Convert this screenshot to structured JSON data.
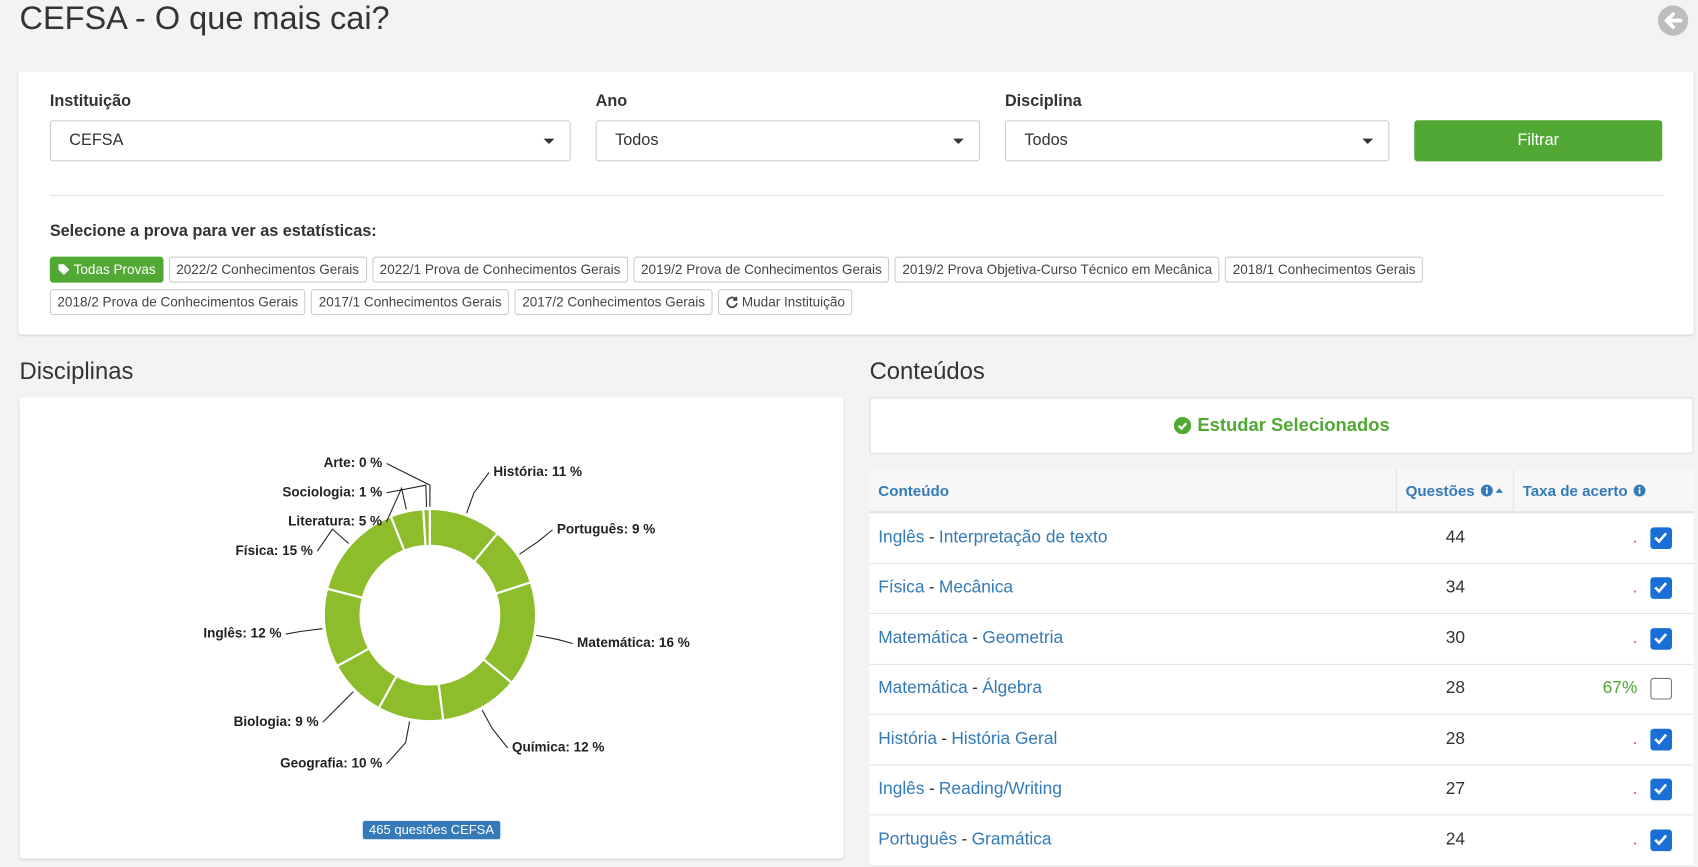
{
  "header": {
    "title": "CEFSA - O que mais cai?"
  },
  "filters": {
    "fields": [
      {
        "label": "Instituição",
        "value": "CEFSA"
      },
      {
        "label": "Ano",
        "value": "Todos"
      },
      {
        "label": "Disciplina",
        "value": "Todos"
      }
    ],
    "button": "Filtrar"
  },
  "exams": {
    "prompt": "Selecione a prova para ver as estatísticas:",
    "tags": [
      "Todas Provas",
      "2022/2 Conhecimentos Gerais",
      "2022/1 Prova de Conhecimentos Gerais",
      "2019/2 Prova de Conhecimentos Gerais",
      "2019/2 Prova Objetiva-Curso Técnico em Mecânica",
      "2018/1 Conhecimentos Gerais",
      "2018/2 Prova de Conhecimentos Gerais",
      "2017/1 Conhecimentos Gerais",
      "2017/2 Conhecimentos Gerais"
    ],
    "change": "Mudar Instituição"
  },
  "disciplinas": {
    "heading": "Disciplinas",
    "badge": "465 questões CEFSA"
  },
  "chart_data": {
    "type": "donut",
    "color": "#8dbd2b",
    "categories": [
      "História",
      "Português",
      "Matemática",
      "Química",
      "Geografia",
      "Biologia",
      "Inglês",
      "Física",
      "Literatura",
      "Sociologia",
      "Arte"
    ],
    "values": [
      11,
      9,
      16,
      12,
      10,
      9,
      12,
      15,
      5,
      1,
      0
    ],
    "value_labels": [
      "História: 11 %",
      "Português: 9 %",
      "Matemática: 16 %",
      "Química: 12 %",
      "Geografia: 10 %",
      "Biologia: 9 %",
      "Inglês: 12 %",
      "Física: 15 %",
      "Literatura: 5 %",
      "Sociologia: 1 %",
      "Arte: 0 %"
    ]
  },
  "conteudos": {
    "heading": "Conteúdos",
    "study_button": "Estudar Selecionados",
    "columns": [
      "Conteúdo",
      "Questões",
      "Taxa de acerto"
    ],
    "rows": [
      {
        "subject": "Inglês",
        "separator": "-",
        "topic": "Interpretação de texto",
        "questoes": 44,
        "taxa": ".",
        "checked": true
      },
      {
        "subject": "Física",
        "separator": "-",
        "topic": "Mecânica",
        "questoes": 34,
        "taxa": ".",
        "checked": true
      },
      {
        "subject": "Matemática",
        "separator": "-",
        "topic": "Geometria",
        "questoes": 30,
        "taxa": ".",
        "checked": true
      },
      {
        "subject": "Matemática",
        "separator": "-",
        "topic": "Álgebra",
        "questoes": 28,
        "taxa": "67%",
        "checked": false
      },
      {
        "subject": "História",
        "separator": "-",
        "topic": "História Geral",
        "questoes": 28,
        "taxa": ".",
        "checked": true
      },
      {
        "subject": "Inglês",
        "separator": "-",
        "topic": "Reading/Writing",
        "questoes": 27,
        "taxa": ".",
        "checked": true
      },
      {
        "subject": "Português",
        "separator": "-",
        "topic": "Gramática",
        "questoes": 24,
        "taxa": ".",
        "checked": true
      }
    ]
  }
}
